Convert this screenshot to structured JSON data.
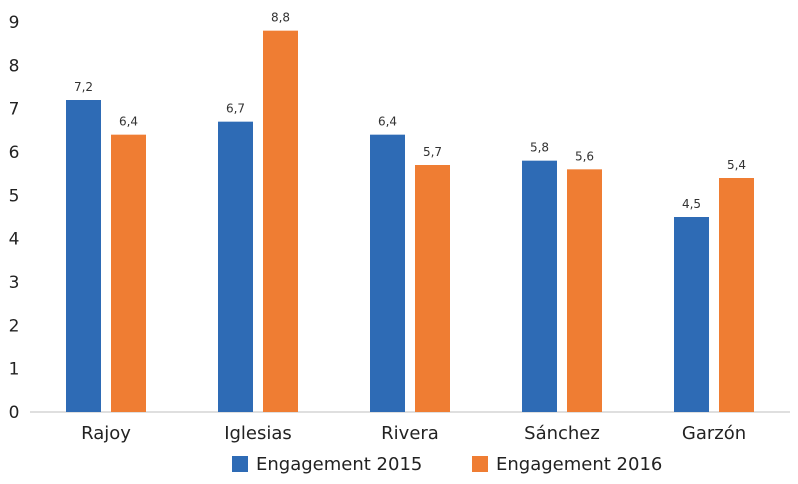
{
  "chart_data": {
    "type": "bar",
    "title": "",
    "xlabel": "",
    "ylabel": "",
    "ylim": [
      0,
      9
    ],
    "yticks": [
      0,
      1,
      2,
      3,
      4,
      5,
      6,
      7,
      8,
      9
    ],
    "grid": false,
    "legend_position": "bottom",
    "categories": [
      "Rajoy",
      "Iglesias",
      "Rivera",
      "Sánchez",
      "Garzón"
    ],
    "series": [
      {
        "name": "Engagement 2015",
        "color": "#2e6bb5",
        "values": [
          7.2,
          6.7,
          6.4,
          5.8,
          4.5
        ],
        "labels": [
          "7,2",
          "6,7",
          "6,4",
          "5,8",
          "4,5"
        ]
      },
      {
        "name": "Engagement 2016",
        "color": "#ef7d33",
        "values": [
          6.4,
          8.8,
          5.7,
          5.6,
          5.4
        ],
        "labels": [
          "6,4",
          "8,8",
          "5,7",
          "5,6",
          "5,4"
        ]
      }
    ]
  }
}
